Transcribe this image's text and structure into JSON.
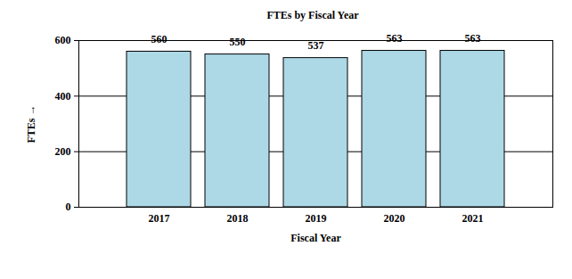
{
  "chart_data": {
    "type": "bar",
    "title": "FTEs by Fiscal Year",
    "x_label": "Fiscal Year",
    "y_label": "FTEs",
    "categories": [
      "2017",
      "2018",
      "2019",
      "2020",
      "2021"
    ],
    "values": [
      560,
      550,
      537,
      563,
      563
    ],
    "color": "#add8e6",
    "ylim": [
      0,
      600
    ],
    "yticks": [
      0,
      200,
      400,
      600
    ],
    "grid": true,
    "data_labels": true
  }
}
